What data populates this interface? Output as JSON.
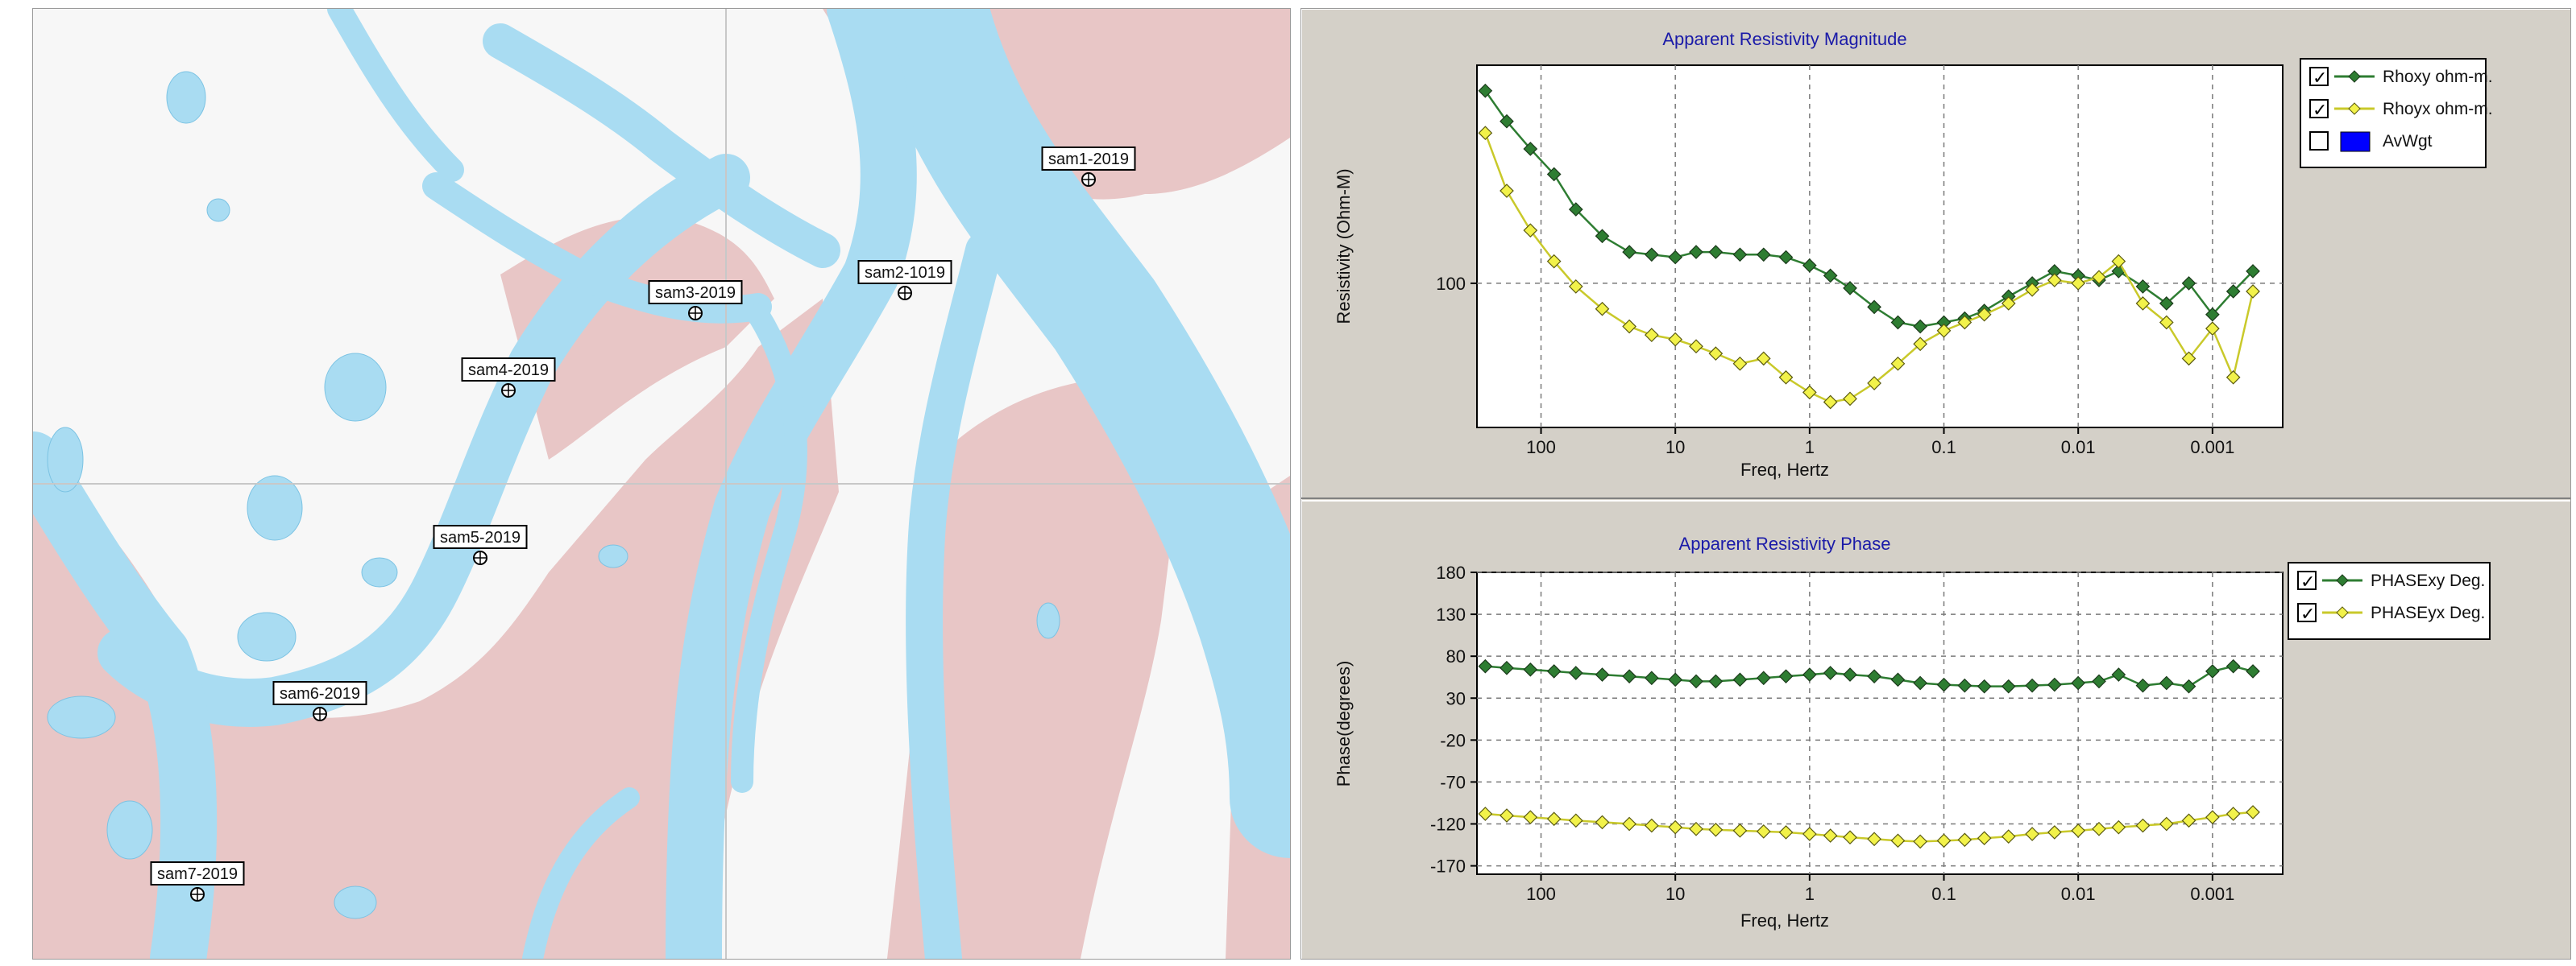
{
  "map": {
    "stations": [
      {
        "name": "sam1-2019"
      },
      {
        "name": "sam2-1019"
      },
      {
        "name": "sam3-2019"
      },
      {
        "name": "sam4-2019"
      },
      {
        "name": "sam5-2019"
      },
      {
        "name": "sam6-2019"
      },
      {
        "name": "sam7-2019"
      }
    ],
    "colors": {
      "water": "#a9dcf2",
      "land": "#f7f7f7",
      "sandbar": "#e8c6c6",
      "label_bg": "#ffffff"
    }
  },
  "colors": {
    "panel_bg": "#d4d0c8",
    "plot_bg": "#ffffff",
    "xy_series": "#2e7d32",
    "yx_series": "#f2f24a",
    "title": "#1a1aa8",
    "avwgt": "#0000ff"
  },
  "chart_data": [
    {
      "type": "line",
      "title": "Apparent Resistivity Magnitude",
      "xlabel": "Freq, Hertz",
      "ylabel": "Resistivity (Ohm-M)",
      "x_scale": "log",
      "x_reversed": true,
      "xlim": [
        300,
        0.0003
      ],
      "y_scale": "log",
      "ylim": [
        40,
        400
      ],
      "xticks": [
        "100",
        "10",
        "1",
        "0.1",
        "0.01",
        "0.001"
      ],
      "xtick_values": [
        100,
        10,
        1,
        0.1,
        0.01,
        0.001
      ],
      "yticks": [
        "100"
      ],
      "ytick_values": [
        100
      ],
      "grid": true,
      "legend_position": "top-right",
      "legend": [
        {
          "label": "Rhoxy ohm-m.",
          "checked": true
        },
        {
          "label": "Rhoyx ohm-m.",
          "checked": true
        },
        {
          "label": "AvWgt",
          "checked": false
        }
      ],
      "series": [
        {
          "name": "Rhoxy ohm-m.",
          "x": [
            260,
            180,
            120,
            80,
            55,
            35,
            22,
            15,
            10,
            7,
            5,
            3.3,
            2.2,
            1.5,
            1.0,
            0.7,
            0.5,
            0.33,
            0.22,
            0.15,
            0.1,
            0.07,
            0.05,
            0.033,
            0.022,
            0.015,
            0.01,
            0.007,
            0.005,
            0.0033,
            0.0022,
            0.0015,
            0.001,
            0.0007,
            0.0005
          ],
          "y": [
            340,
            280,
            235,
            200,
            160,
            135,
            122,
            120,
            118,
            122,
            122,
            120,
            120,
            118,
            112,
            105,
            97,
            86,
            78,
            76,
            78,
            80,
            84,
            92,
            100,
            108,
            105,
            102,
            108,
            98,
            88,
            100,
            82,
            95,
            108
          ]
        },
        {
          "name": "Rhoyx ohm-m.",
          "x": [
            260,
            180,
            120,
            80,
            55,
            35,
            22,
            15,
            10,
            7,
            5,
            3.3,
            2.2,
            1.5,
            1.0,
            0.7,
            0.5,
            0.33,
            0.22,
            0.15,
            0.1,
            0.07,
            0.05,
            0.033,
            0.022,
            0.015,
            0.01,
            0.007,
            0.005,
            0.0033,
            0.0022,
            0.0015,
            0.001,
            0.0007,
            0.0005
          ],
          "y": [
            260,
            180,
            140,
            115,
            98,
            85,
            76,
            72,
            70,
            67,
            64,
            60,
            62,
            55,
            50,
            47,
            48,
            53,
            60,
            68,
            74,
            78,
            82,
            88,
            96,
            102,
            100,
            104,
            115,
            88,
            78,
            62,
            75,
            55,
            95
          ]
        }
      ]
    },
    {
      "type": "line",
      "title": "Apparent Resistivity Phase",
      "xlabel": "Freq, Hertz",
      "ylabel": "Phase(degrees)",
      "x_scale": "log",
      "x_reversed": true,
      "xlim": [
        300,
        0.0003
      ],
      "ylim": [
        -180,
        180
      ],
      "xticks": [
        "100",
        "10",
        "1",
        "0.1",
        "0.01",
        "0.001"
      ],
      "xtick_values": [
        100,
        10,
        1,
        0.1,
        0.01,
        0.001
      ],
      "yticks": [
        "180",
        "130",
        "80",
        "30",
        "-20",
        "-70",
        "-120",
        "-170"
      ],
      "ytick_values": [
        180,
        130,
        80,
        30,
        -20,
        -70,
        -120,
        -170
      ],
      "grid": true,
      "legend_position": "top-right",
      "legend": [
        {
          "label": "PHASExy Deg.",
          "checked": true
        },
        {
          "label": "PHASEyx Deg.",
          "checked": true
        }
      ],
      "series": [
        {
          "name": "PHASExy Deg.",
          "x": [
            260,
            180,
            120,
            80,
            55,
            35,
            22,
            15,
            10,
            7,
            5,
            3.3,
            2.2,
            1.5,
            1.0,
            0.7,
            0.5,
            0.33,
            0.22,
            0.15,
            0.1,
            0.07,
            0.05,
            0.033,
            0.022,
            0.015,
            0.01,
            0.007,
            0.005,
            0.0033,
            0.0022,
            0.0015,
            0.001,
            0.0007,
            0.0005
          ],
          "y": [
            68,
            66,
            64,
            62,
            60,
            58,
            56,
            54,
            52,
            50,
            50,
            52,
            54,
            56,
            58,
            60,
            58,
            56,
            52,
            48,
            46,
            45,
            44,
            44,
            45,
            46,
            48,
            50,
            58,
            45,
            48,
            44,
            62,
            68,
            62
          ]
        },
        {
          "name": "PHASEyx Deg.",
          "x": [
            260,
            180,
            120,
            80,
            55,
            35,
            22,
            15,
            10,
            7,
            5,
            3.3,
            2.2,
            1.5,
            1.0,
            0.7,
            0.5,
            0.33,
            0.22,
            0.15,
            0.1,
            0.07,
            0.05,
            0.033,
            0.022,
            0.015,
            0.01,
            0.007,
            0.005,
            0.0033,
            0.0022,
            0.0015,
            0.001,
            0.0007,
            0.0005
          ],
          "y": [
            -108,
            -110,
            -112,
            -114,
            -116,
            -118,
            -120,
            -122,
            -124,
            -126,
            -127,
            -128,
            -129,
            -130,
            -132,
            -134,
            -136,
            -138,
            -140,
            -141,
            -140,
            -139,
            -137,
            -135,
            -132,
            -130,
            -128,
            -126,
            -124,
            -122,
            -120,
            -116,
            -112,
            -108,
            -106
          ]
        }
      ]
    }
  ]
}
